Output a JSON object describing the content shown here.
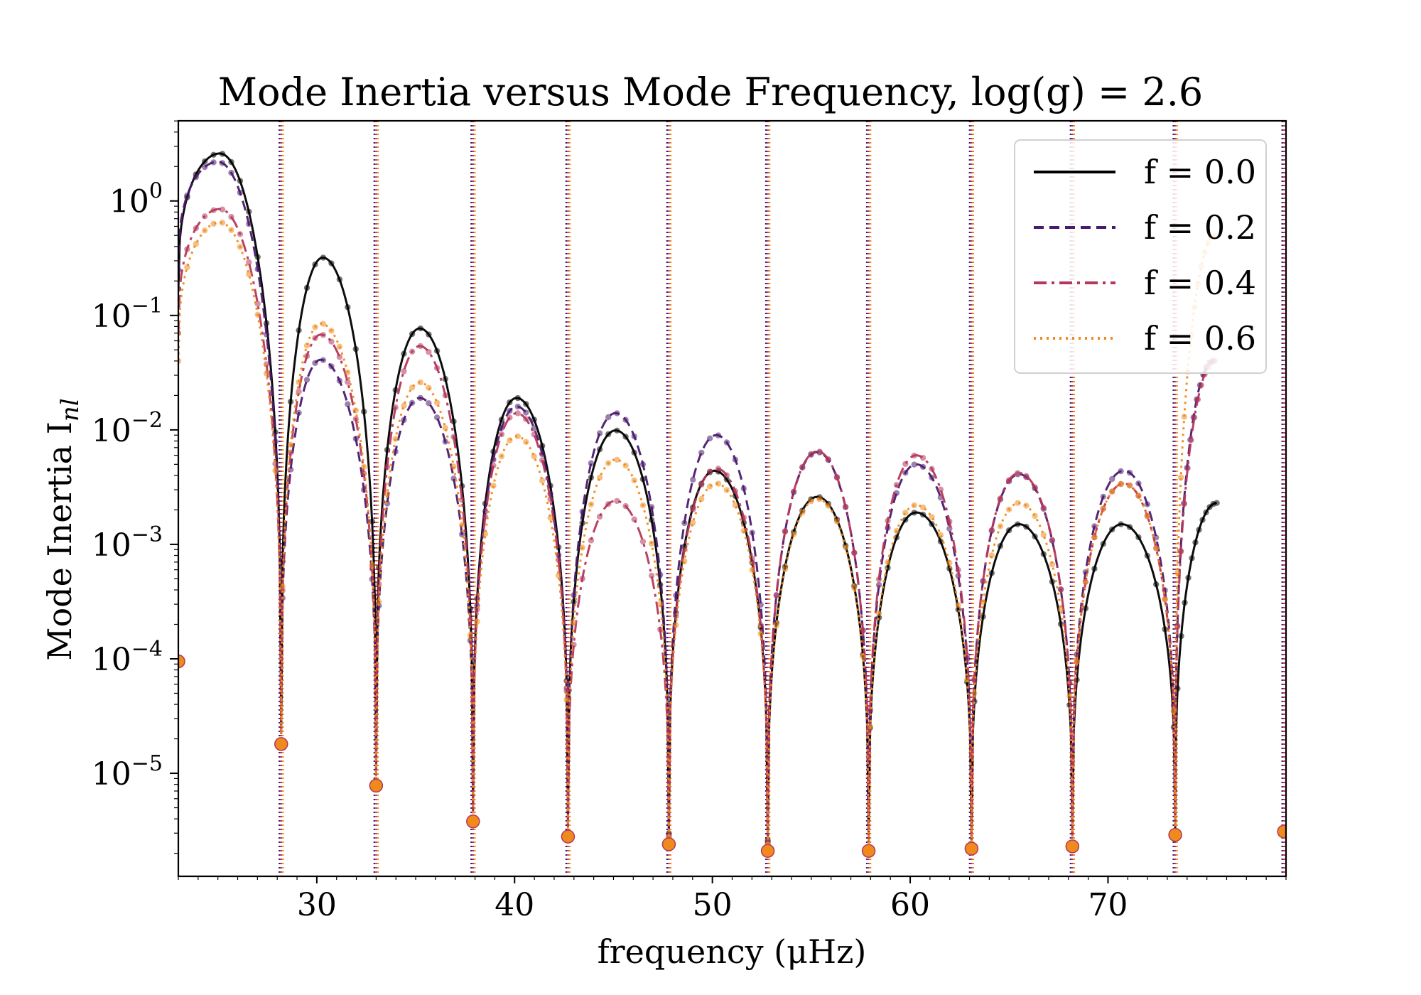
{
  "chart_data": {
    "type": "line",
    "title": "Mode Inertia versus Mode Frequency, log(g) = 2.6",
    "xlabel": "frequency (μHz)",
    "ylabel": "Mode Inertia I",
    "ylabel_subscript": "nl",
    "xlim": [
      23,
      79
    ],
    "ylim_log10": [
      -5.9,
      0.7
    ],
    "x_ticks": [
      30,
      40,
      50,
      60,
      70
    ],
    "y_ticks": [
      {
        "exp": 0,
        "base": "10",
        "sup": "0"
      },
      {
        "exp": -1,
        "base": "10",
        "sup": "−1"
      },
      {
        "exp": -2,
        "base": "10",
        "sup": "−2"
      },
      {
        "exp": -3,
        "base": "10",
        "sup": "−3"
      },
      {
        "exp": -4,
        "base": "10",
        "sup": "−4"
      },
      {
        "exp": -5,
        "base": "10",
        "sup": "−5"
      }
    ],
    "dip_frequencies": [
      28.2,
      33.0,
      37.9,
      42.7,
      47.8,
      52.8,
      57.9,
      63.1,
      68.2,
      73.4
    ],
    "vertical_lines": [
      28.2,
      33.0,
      37.9,
      42.7,
      47.8,
      52.8,
      57.9,
      63.1,
      68.2,
      73.4,
      78.9
    ],
    "legend_position": "top-right",
    "series": [
      {
        "name": "f = 0.0",
        "color": "#000000",
        "style": "solid",
        "x_start": 23.0,
        "x_end": 75.5,
        "peak_freqs": [
          25.1,
          30.3,
          35.2,
          40.1,
          45.1,
          50.1,
          55.3,
          60.3,
          65.5,
          70.7,
          75.5
        ],
        "peaks": [
          2.6,
          0.32,
          0.077,
          0.019,
          0.0099,
          0.0044,
          0.0026,
          0.0019,
          0.0015,
          0.0015,
          0.0023
        ],
        "start_value": 0.17,
        "dips": [
          2.5e-05,
          1.3e-05,
          5e-06,
          4e-06,
          3e-06,
          2.6e-06,
          2.5e-06,
          2.6e-06,
          2.8e-06,
          3.3e-06
        ]
      },
      {
        "name": "f = 0.2",
        "color": "#4a1a6d",
        "style": "dashed",
        "x_start": 23.0,
        "x_end": 75.3,
        "peak_freqs": [
          25.0,
          30.2,
          35.2,
          40.1,
          45.1,
          50.2,
          55.3,
          60.3,
          65.5,
          70.8,
          75.3
        ],
        "peaks": [
          2.2,
          0.041,
          0.019,
          0.016,
          0.014,
          0.009,
          0.0064,
          0.005,
          0.0041,
          0.0044,
          0.04
        ],
        "start_value": 0.25,
        "dips": [
          2.3e-05,
          1e-05,
          4.5e-06,
          3.5e-06,
          2.9e-06,
          2.5e-06,
          2.5e-06,
          2.6e-06,
          2.9e-06,
          3.5e-06
        ]
      },
      {
        "name": "f = 0.4",
        "color": "#b5375a",
        "style": "dashdot",
        "x_start": 23.0,
        "x_end": 75.4,
        "peak_freqs": [
          25.1,
          30.2,
          35.2,
          40.1,
          45.1,
          50.2,
          55.3,
          60.3,
          65.5,
          70.8,
          75.4
        ],
        "peaks": [
          0.85,
          0.068,
          0.054,
          0.014,
          0.0024,
          0.0046,
          0.0065,
          0.006,
          0.0042,
          0.0034,
          0.04
        ],
        "start_value": 0.07,
        "dips": [
          2.2e-05,
          9.5e-06,
          4.4e-06,
          3.4e-06,
          2.8e-06,
          2.4e-06,
          2.4e-06,
          2.5e-06,
          2.8e-06,
          3.4e-06
        ]
      },
      {
        "name": "f = 0.6",
        "color": "#ef8a1c",
        "style": "dotted",
        "x_start": 23.0,
        "x_end": 75.4,
        "peak_freqs": [
          25.1,
          30.2,
          35.2,
          40.1,
          45.1,
          50.2,
          55.3,
          60.3,
          65.5,
          70.8,
          75.4
        ],
        "peaks": [
          0.65,
          0.085,
          0.026,
          0.0088,
          0.0055,
          0.0034,
          0.0025,
          0.0022,
          0.0023,
          0.0034,
          0.5
        ],
        "start_value": 0.04,
        "dips": [
          2.2e-05,
          9e-06,
          4.3e-06,
          3.3e-06,
          2.8e-06,
          2.4e-06,
          2.4e-06,
          2.5e-06,
          2.8e-06,
          3.4e-06
        ]
      }
    ],
    "min_markers": [
      {
        "x": 23.0,
        "y": 9.5e-05
      },
      {
        "x": 28.2,
        "y": 1.8e-05
      },
      {
        "x": 33.0,
        "y": 7.8e-06
      },
      {
        "x": 37.9,
        "y": 3.8e-06
      },
      {
        "x": 42.7,
        "y": 2.8e-06
      },
      {
        "x": 47.8,
        "y": 2.4e-06
      },
      {
        "x": 52.8,
        "y": 2.1e-06
      },
      {
        "x": 57.9,
        "y": 2.1e-06
      },
      {
        "x": 63.1,
        "y": 2.2e-06
      },
      {
        "x": 68.2,
        "y": 2.3e-06
      },
      {
        "x": 73.4,
        "y": 2.9e-06
      },
      {
        "x": 78.9,
        "y": 3.1e-06
      }
    ]
  }
}
